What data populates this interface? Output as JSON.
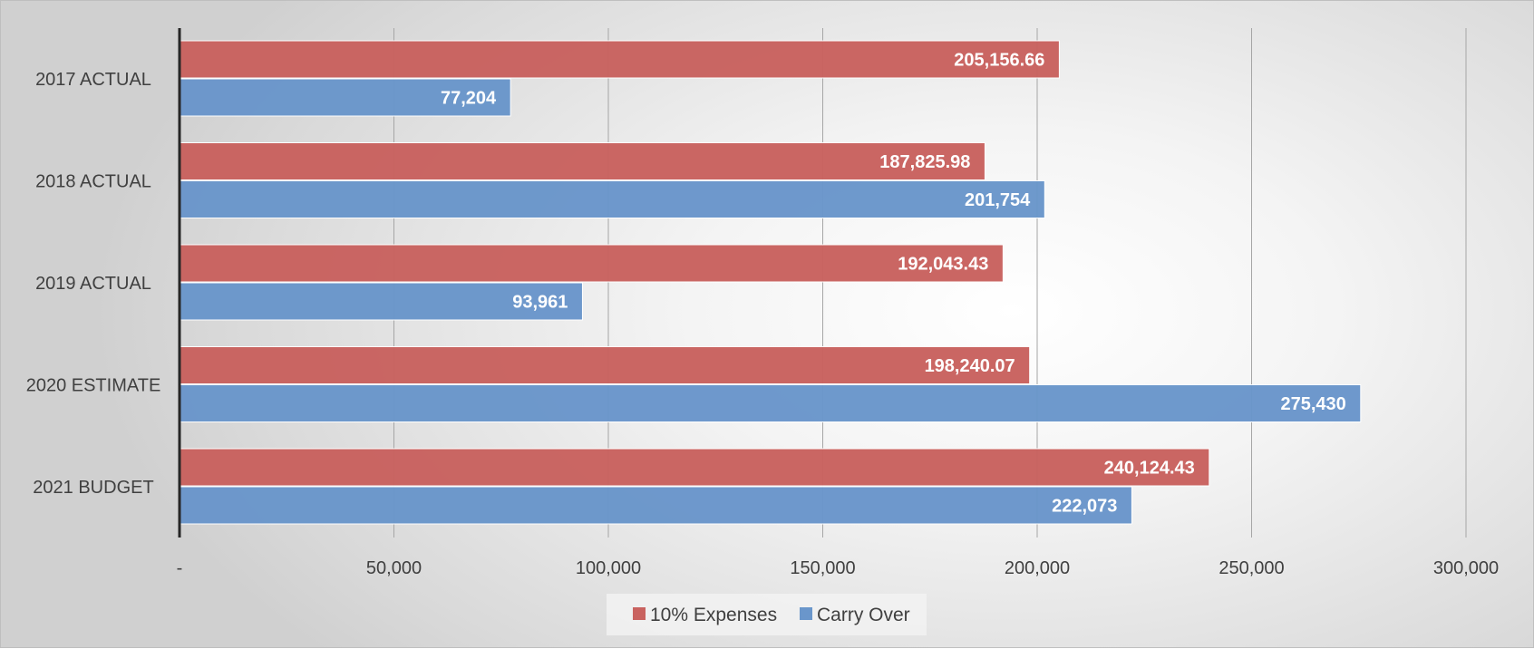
{
  "chart_data": {
    "type": "bar",
    "orientation": "horizontal",
    "title": "",
    "xlabel": "",
    "ylabel": "",
    "categories": [
      "2017 ACTUAL",
      "2018 ACTUAL",
      "2019 ACTUAL",
      "2020 ESTIMATE",
      "2021 BUDGET"
    ],
    "series": [
      {
        "name": "10% Expenses",
        "color": "#c9625f",
        "values": [
          205156.66,
          187825.98,
          192043.43,
          198240.07,
          240124.43
        ],
        "labels": [
          "205,156.66",
          "187,825.98",
          "192,043.43",
          "198,240.07",
          "240,124.43"
        ]
      },
      {
        "name": "Carry Over",
        "color": "#6a96cb",
        "values": [
          77204,
          201754,
          93961,
          275430,
          222073
        ],
        "labels": [
          "77,204",
          "201,754",
          "93,961",
          "275,430",
          "222,073"
        ]
      }
    ],
    "xlim": [
      0,
      300000
    ],
    "xticks": [
      0,
      50000,
      100000,
      150000,
      200000,
      250000,
      300000
    ],
    "xtick_labels": [
      "-",
      "50,000",
      "100,000",
      "150,000",
      "200,000",
      "250,000",
      "300,000"
    ],
    "grid": true,
    "legend_position": "bottom-center"
  }
}
